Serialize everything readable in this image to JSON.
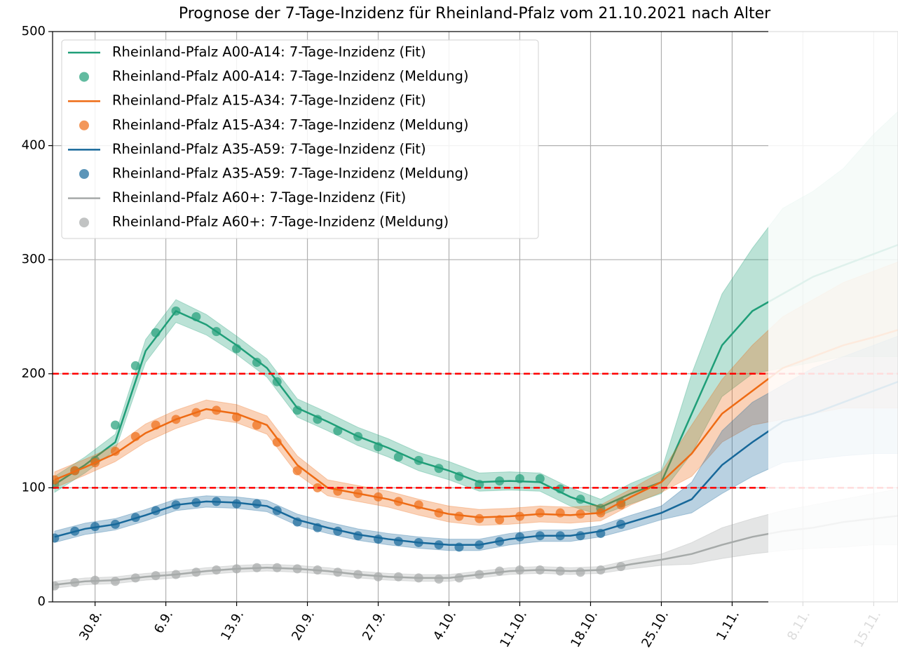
{
  "chart_data": {
    "type": "line",
    "title": "Prognose der 7-Tage-Inzidenz für Rheinland-Pfalz vom 21.10.2021 nach Alter",
    "xlim": [
      237.8,
      321.4
    ],
    "xticks": [
      {
        "value": 242,
        "label": "30.8."
      },
      {
        "value": 249,
        "label": "6.9."
      },
      {
        "value": 256,
        "label": "13.9."
      },
      {
        "value": 263,
        "label": "20.9."
      },
      {
        "value": 270,
        "label": "27.9."
      },
      {
        "value": 277,
        "label": "4.10."
      },
      {
        "value": 284,
        "label": "11.10."
      },
      {
        "value": 291,
        "label": "18.10."
      },
      {
        "value": 298,
        "label": "25.10."
      },
      {
        "value": 305,
        "label": "1.11."
      },
      {
        "value": 312,
        "label": "8.11."
      },
      {
        "value": 319,
        "label": "15.11."
      }
    ],
    "ylim": [
      0,
      500
    ],
    "yticks": [
      0,
      100,
      200,
      300,
      400,
      500
    ],
    "grid": true,
    "hlines": [
      100,
      200
    ],
    "hline_color": "#ff0000",
    "legend": "upper left",
    "series": [
      {
        "name": "Rheinland-Pfalz A00-A14: 7-Tage-Inzidenz (Fit)",
        "type": "line",
        "color": "#1f9e78",
        "x": [
          238,
          241,
          244,
          247,
          250,
          253,
          256,
          259,
          262,
          265,
          268,
          271,
          274,
          277,
          280,
          283,
          286,
          289,
          292,
          295,
          298,
          301,
          304,
          307,
          310,
          313,
          316,
          319,
          322
        ],
        "values": [
          103,
          120,
          140,
          220,
          255,
          243,
          225,
          205,
          170,
          158,
          145,
          135,
          123,
          115,
          105,
          106,
          105,
          92,
          83,
          95,
          105,
          165,
          225,
          255,
          270,
          285,
          295,
          305,
          315
        ],
        "lower": [
          96,
          113,
          133,
          210,
          245,
          234,
          217,
          197,
          162,
          150,
          137,
          127,
          115,
          107,
          97,
          98,
          97,
          84,
          76,
          86,
          95,
          130,
          180,
          200,
          205,
          210,
          215,
          215,
          215
        ],
        "upper": [
          110,
          127,
          147,
          230,
          265,
          252,
          233,
          213,
          178,
          166,
          153,
          143,
          131,
          123,
          113,
          114,
          113,
          100,
          90,
          104,
          115,
          200,
          270,
          310,
          345,
          360,
          380,
          410,
          435
        ]
      },
      {
        "name": "Rheinland-Pfalz A00-A14: 7-Tage-Inzidenz (Meldung)",
        "type": "scatter",
        "color": "#1f9e78",
        "x": [
          238,
          240,
          242,
          244,
          246,
          248,
          250,
          252,
          254,
          256,
          258,
          260,
          262,
          264,
          266,
          268,
          270,
          272,
          274,
          276,
          278,
          280,
          282,
          284,
          286,
          288,
          290,
          292,
          294
        ],
        "values": [
          103,
          115,
          124,
          155,
          207,
          236,
          255,
          250,
          237,
          222,
          210,
          193,
          168,
          160,
          150,
          145,
          136,
          127,
          124,
          117,
          110,
          103,
          106,
          108,
          108,
          99,
          90,
          82,
          87
        ]
      },
      {
        "name": "Rheinland-Pfalz A15-A34: 7-Tage-Inzidenz (Fit)",
        "type": "line",
        "color": "#ee6b14",
        "x": [
          238,
          241,
          244,
          247,
          250,
          253,
          256,
          259,
          262,
          265,
          268,
          271,
          274,
          277,
          280,
          283,
          286,
          289,
          292,
          295,
          298,
          301,
          304,
          307,
          310,
          313,
          316,
          319,
          322
        ],
        "values": [
          107,
          118,
          130,
          148,
          160,
          169,
          165,
          155,
          120,
          100,
          95,
          90,
          83,
          77,
          74,
          75,
          77,
          76,
          78,
          92,
          105,
          130,
          165,
          185,
          205,
          215,
          225,
          232,
          240
        ],
        "lower": [
          100,
          111,
          123,
          140,
          152,
          161,
          157,
          147,
          112,
          93,
          88,
          83,
          76,
          70,
          67,
          68,
          70,
          69,
          71,
          85,
          96,
          110,
          140,
          155,
          160,
          165,
          170,
          170,
          170
        ],
        "upper": [
          114,
          125,
          137,
          156,
          168,
          177,
          173,
          163,
          128,
          107,
          102,
          97,
          90,
          84,
          81,
          82,
          84,
          83,
          85,
          99,
          114,
          155,
          195,
          225,
          250,
          265,
          280,
          290,
          300
        ]
      },
      {
        "name": "Rheinland-Pfalz A15-A34: 7-Tage-Inzidenz (Meldung)",
        "type": "scatter",
        "color": "#ee6b14",
        "x": [
          238,
          240,
          242,
          244,
          246,
          248,
          250,
          252,
          254,
          256,
          258,
          260,
          262,
          264,
          266,
          268,
          270,
          272,
          274,
          276,
          278,
          280,
          282,
          284,
          286,
          288,
          290,
          292,
          294
        ],
        "values": [
          107,
          115,
          122,
          132,
          145,
          155,
          160,
          166,
          168,
          162,
          155,
          140,
          115,
          100,
          97,
          95,
          92,
          88,
          85,
          78,
          75,
          73,
          72,
          75,
          78,
          78,
          77,
          78,
          85
        ]
      },
      {
        "name": "Rheinland-Pfalz A35-A59: 7-Tage-Inzidenz (Fit)",
        "type": "line",
        "color": "#17689a",
        "x": [
          238,
          241,
          244,
          247,
          250,
          253,
          256,
          259,
          262,
          265,
          268,
          271,
          274,
          277,
          280,
          283,
          286,
          289,
          292,
          295,
          298,
          301,
          304,
          307,
          310,
          313,
          316,
          319,
          322
        ],
        "values": [
          57,
          64,
          68,
          76,
          85,
          88,
          87,
          84,
          72,
          65,
          59,
          55,
          52,
          50,
          50,
          55,
          58,
          58,
          62,
          70,
          78,
          90,
          120,
          140,
          158,
          165,
          175,
          185,
          195
        ],
        "lower": [
          52,
          59,
          63,
          71,
          80,
          83,
          82,
          79,
          67,
          60,
          54,
          50,
          47,
          45,
          45,
          50,
          53,
          53,
          57,
          64,
          72,
          78,
          95,
          110,
          122,
          125,
          128,
          130,
          130
        ],
        "upper": [
          62,
          69,
          73,
          81,
          90,
          93,
          92,
          89,
          77,
          70,
          64,
          60,
          57,
          55,
          55,
          60,
          63,
          63,
          67,
          76,
          84,
          105,
          150,
          175,
          190,
          205,
          215,
          225,
          235
        ]
      },
      {
        "name": "Rheinland-Pfalz A35-A59: 7-Tage-Inzidenz (Meldung)",
        "type": "scatter",
        "color": "#17689a",
        "x": [
          238,
          240,
          242,
          244,
          246,
          248,
          250,
          252,
          254,
          256,
          258,
          260,
          262,
          264,
          266,
          268,
          270,
          272,
          274,
          276,
          278,
          280,
          282,
          284,
          286,
          288,
          290,
          292,
          294
        ],
        "values": [
          56,
          62,
          66,
          68,
          74,
          80,
          85,
          87,
          88,
          86,
          86,
          80,
          70,
          65,
          62,
          58,
          55,
          53,
          52,
          50,
          48,
          50,
          53,
          57,
          58,
          58,
          58,
          60,
          68
        ]
      },
      {
        "name": "Rheinland-Pfalz A60+: 7-Tage-Inzidenz (Fit)",
        "type": "line",
        "color": "#a6aaa9",
        "x": [
          238,
          241,
          244,
          247,
          250,
          253,
          256,
          259,
          262,
          265,
          268,
          271,
          274,
          277,
          280,
          283,
          286,
          289,
          292,
          295,
          298,
          301,
          304,
          307,
          310,
          313,
          316,
          319,
          322
        ],
        "values": [
          15,
          18,
          19,
          22,
          24,
          27,
          29,
          30,
          29,
          27,
          24,
          22,
          21,
          21,
          24,
          27,
          28,
          27,
          28,
          33,
          37,
          42,
          50,
          57,
          62,
          65,
          70,
          73,
          76
        ],
        "lower": [
          12,
          15,
          16,
          19,
          21,
          24,
          26,
          27,
          26,
          24,
          21,
          19,
          18,
          18,
          21,
          24,
          25,
          24,
          25,
          29,
          32,
          33,
          38,
          42,
          45,
          47,
          48,
          50,
          50
        ],
        "upper": [
          18,
          21,
          22,
          25,
          27,
          30,
          32,
          33,
          32,
          30,
          27,
          25,
          24,
          24,
          27,
          30,
          31,
          30,
          31,
          37,
          42,
          52,
          65,
          73,
          80,
          85,
          90,
          95,
          100
        ]
      },
      {
        "name": "Rheinland-Pfalz A60+: 7-Tage-Inzidenz (Meldung)",
        "type": "scatter",
        "color": "#a6aaa9",
        "x": [
          238,
          240,
          242,
          244,
          246,
          248,
          250,
          252,
          254,
          256,
          258,
          260,
          262,
          264,
          266,
          268,
          270,
          272,
          274,
          276,
          278,
          280,
          282,
          284,
          286,
          288,
          290,
          292,
          294
        ],
        "values": [
          14,
          17,
          19,
          18,
          21,
          23,
          24,
          26,
          28,
          29,
          30,
          30,
          29,
          28,
          26,
          24,
          22,
          22,
          21,
          20,
          21,
          24,
          27,
          28,
          28,
          27,
          26,
          28,
          31
        ]
      }
    ]
  }
}
